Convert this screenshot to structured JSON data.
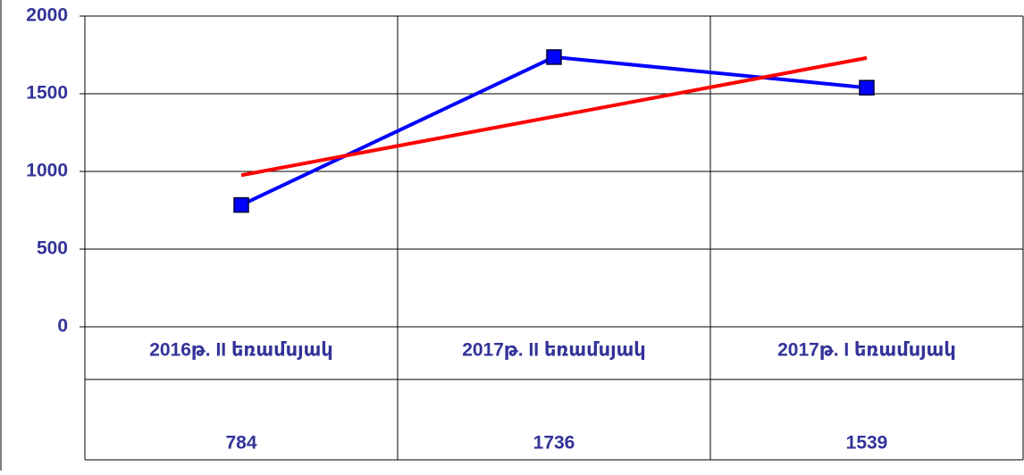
{
  "chart_data": {
    "type": "line",
    "categories": [
      "2016թ. II եռամսյակ",
      "2017թ. II եռամսյակ",
      "2017թ. I եռամսյակ"
    ],
    "series": [
      {
        "color": "#0000ff",
        "values": [
          784,
          1736,
          1539
        ]
      }
    ],
    "ylim": [
      0,
      2000
    ],
    "yticks": [
      0,
      500,
      1000,
      1500,
      2000
    ],
    "grid": true,
    "trendline": {
      "type": "linear",
      "color": "#ff0000"
    },
    "data_table": true
  }
}
